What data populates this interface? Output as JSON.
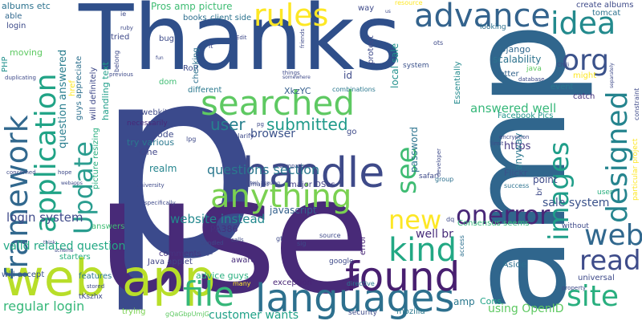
{
  "colors": {
    "background": "#ffffff",
    "palette": [
      "#440154",
      "#3b528b",
      "#21908d",
      "#5dc963",
      "#fde725"
    ]
  },
  "words": [
    {
      "text": "p",
      "color": "#3b4a8c"
    },
    {
      "text": "use",
      "color": "#482a78"
    },
    {
      "text": "Thanks",
      "color": "#2f4f8a"
    },
    {
      "text": "amp",
      "color": "#30668d"
    },
    {
      "text": "web app",
      "color": "#b8de29"
    },
    {
      "text": "handle",
      "color": "#3e4a89"
    },
    {
      "text": "languages",
      "color": "#2d708e"
    },
    {
      "text": "found",
      "color": "#481f70"
    },
    {
      "text": "anything",
      "color": "#7ad151"
    },
    {
      "text": "searched",
      "color": "#5ec962"
    },
    {
      "text": "file",
      "color": "#35b779"
    },
    {
      "text": "kind",
      "color": "#22a884"
    },
    {
      "text": "advance",
      "color": "#33638d"
    },
    {
      "text": "idea",
      "color": "#238a8d"
    },
    {
      "text": "org",
      "color": "#3b528b"
    },
    {
      "text": "rules",
      "color": "#fde725"
    },
    {
      "text": "framework",
      "color": "#31688e"
    },
    {
      "text": "application",
      "color": "#20a386"
    },
    {
      "text": "Update",
      "color": "#2a9d8f"
    },
    {
      "text": "designed",
      "color": "#25848e"
    },
    {
      "text": "images",
      "color": "#1f9e89"
    },
    {
      "text": "web",
      "color": "#31688e"
    },
    {
      "text": "site",
      "color": "#29af7f"
    },
    {
      "text": "read",
      "color": "#3e4c8a"
    },
    {
      "text": "onerror",
      "color": "#482677"
    },
    {
      "text": "new",
      "color": "#fde725"
    },
    {
      "text": "see",
      "color": "#3fbc73"
    },
    {
      "text": "submitted",
      "color": "#1f9a8a"
    },
    {
      "text": "user",
      "color": "#27808e"
    },
    {
      "text": "questions section",
      "color": "#2a788e"
    },
    {
      "text": "answered well",
      "color": "#35b779"
    },
    {
      "text": "login system",
      "color": "#3e4989"
    },
    {
      "text": "regular login",
      "color": "#35b779"
    },
    {
      "text": "website instead",
      "color": "#23898e"
    },
    {
      "text": "customer wants",
      "color": "#1fa187"
    },
    {
      "text": "sale system",
      "color": "#3b528b"
    },
    {
      "text": "using OpenID",
      "color": "#5ec962"
    },
    {
      "text": "valid related question",
      "color": "#22a884"
    },
    {
      "text": "Pros amp picture",
      "color": "#3fbc73"
    },
    {
      "text": "question answered",
      "color": "#287d8e"
    },
    {
      "text": "javascript",
      "color": "#34618d"
    },
    {
      "text": "browser",
      "color": "#3b528b"
    },
    {
      "text": "well br",
      "color": "#472c7a"
    },
    {
      "text": "https",
      "color": "#453882"
    },
    {
      "text": "Django",
      "color": "#31688e"
    },
    {
      "text": "scalability",
      "color": "#2c728e"
    },
    {
      "text": "Facebook Pics",
      "color": "#1f968b"
    },
    {
      "text": "Flickr",
      "color": "#3b528b"
    },
    {
      "text": "point",
      "color": "#3e4a89"
    },
    {
      "text": "realm",
      "color": "#25858e"
    },
    {
      "text": "PA386",
      "color": "#46327e"
    },
    {
      "text": "Java applet",
      "color": "#414487"
    },
    {
      "text": "XkzYC",
      "color": "#355f8d"
    },
    {
      "text": "RoR",
      "color": "#3e4c8a"
    },
    {
      "text": "comments",
      "color": "#46337f"
    },
    {
      "text": "advice guys",
      "color": "#29af7f"
    },
    {
      "text": "Cons",
      "color": "#20a386"
    },
    {
      "text": "amp",
      "color": "#2a788e"
    },
    {
      "text": "exception",
      "color": "#482576"
    },
    {
      "text": "google",
      "color": "#3e4a89"
    },
    {
      "text": "local sale",
      "color": "#21918c"
    },
    {
      "text": "password",
      "color": "#2c738e"
    },
    {
      "text": "webkit",
      "color": "#3e4989"
    },
    {
      "text": "code",
      "color": "#3e4a89"
    },
    {
      "text": "One",
      "color": "#404588"
    },
    {
      "text": "bug",
      "color": "#3e4c8a"
    },
    {
      "text": "dom",
      "color": "#3fbc73"
    },
    {
      "text": "books",
      "color": "#2e6e8e"
    },
    {
      "text": "client side",
      "color": "#2c738e"
    },
    {
      "text": "different",
      "color": "#2a788e"
    },
    {
      "text": "checking",
      "color": "#2d708e"
    },
    {
      "text": "major OSes",
      "color": "#424086"
    },
    {
      "text": "aware",
      "color": "#472d7b"
    },
    {
      "text": "answers",
      "color": "#3fbc73"
    },
    {
      "text": "features",
      "color": "#2a788e"
    },
    {
      "text": "starters",
      "color": "#26ad81"
    },
    {
      "text": "will accept",
      "color": "#3b528b"
    },
    {
      "text": "tried",
      "color": "#3e4989"
    },
    {
      "text": "moving",
      "color": "#5ec962"
    },
    {
      "text": "able",
      "color": "#31688e"
    },
    {
      "text": "login",
      "color": "#3e4c8a"
    },
    {
      "text": "albums etc",
      "color": "#2c728e"
    },
    {
      "text": "PHP",
      "color": "#21908d"
    },
    {
      "text": "guys appreciate",
      "color": "#2d708e"
    },
    {
      "text": "will definitely",
      "color": "#3e4989"
    },
    {
      "text": "handling text",
      "color": "#1f9e89"
    },
    {
      "text": "picture resizing",
      "color": "#29af7f"
    },
    {
      "text": "try various",
      "color": "#2a788e"
    },
    {
      "text": "necessarily",
      "color": "#482878"
    },
    {
      "text": "way",
      "color": "#3e4a89"
    },
    {
      "text": "protect",
      "color": "#3e4a89"
    },
    {
      "text": "system",
      "color": "#3b528b"
    },
    {
      "text": "Essentially",
      "color": "#238a8d"
    },
    {
      "text": "better",
      "color": "#33638d"
    },
    {
      "text": "might",
      "color": "#fde725"
    },
    {
      "text": "event",
      "color": "#2a788e"
    },
    {
      "text": "catch",
      "color": "#46327e"
    },
    {
      "text": "create albums",
      "color": "#3e4a89"
    },
    {
      "text": "tomcat",
      "color": "#2c728e"
    },
    {
      "text": "looking",
      "color": "#2d708e"
    },
    {
      "text": "id",
      "color": "#3e4a89"
    },
    {
      "text": "without",
      "color": "#3e4a89"
    },
    {
      "text": "anyway",
      "color": "#2a788e"
    },
    {
      "text": "br",
      "color": "#3e4a89"
    },
    {
      "text": "Aside",
      "color": "#2d708e"
    },
    {
      "text": "user",
      "color": "#29af7f"
    },
    {
      "text": "universal",
      "color": "#3e4a89"
    },
    {
      "text": "mozilla",
      "color": "#2a788e"
    },
    {
      "text": "security",
      "color": "#3e4a89"
    },
    {
      "text": "error",
      "color": "#482677"
    },
    {
      "text": "Consensus seems",
      "color": "#35b779"
    },
    {
      "text": "tKszhx",
      "color": "#3e4a89"
    },
    {
      "text": "trying",
      "color": "#7ad151"
    },
    {
      "text": "particular project",
      "color": "#fde725"
    },
    {
      "text": "gQaGbpUmjG",
      "color": "#5ec962"
    },
    {
      "text": "source",
      "color": "#3e4a89"
    },
    {
      "text": "combinations",
      "color": "#2a788e"
    },
    {
      "text": "safari",
      "color": "#3e4a89"
    },
    {
      "text": "group",
      "color": "#2d708e"
    },
    {
      "text": "success",
      "color": "#2c728e"
    },
    {
      "text": "ots",
      "color": "#3e4a89"
    },
    {
      "text": "lt",
      "color": "#3e4a89"
    },
    {
      "text": "gt",
      "color": "#3e4a89"
    },
    {
      "text": "go",
      "color": "#3e4a89"
    },
    {
      "text": "dq",
      "color": "#3e4a89"
    },
    {
      "text": "sig",
      "color": "#3e4a89"
    },
    {
      "text": "directive",
      "color": "#2a788e"
    },
    {
      "text": "access",
      "color": "#2d708e"
    },
    {
      "text": "major",
      "color": "#3e4a89"
    },
    {
      "text": "clarify",
      "color": "#3e4a89"
    },
    {
      "text": "constraint",
      "color": "#3e4a89"
    },
    {
      "text": "many",
      "color": "#fde725"
    },
    {
      "text": "href",
      "color": "#fde725"
    },
    {
      "text": "belong",
      "color": "#3e4a89"
    },
    {
      "text": "lpg",
      "color": "#3e4a89"
    },
    {
      "text": "encryption",
      "color": "#3e4a89"
    },
    {
      "text": "limit",
      "color": "#3e4a89"
    },
    {
      "text": "database",
      "color": "#3e4a89"
    },
    {
      "text": "previous",
      "color": "#3e4a89"
    },
    {
      "text": "comparison",
      "color": "#3e4a89"
    },
    {
      "text": "developer",
      "color": "#3e4a89"
    },
    {
      "text": "university",
      "color": "#3e4a89"
    },
    {
      "text": "specifically",
      "color": "#3e4a89"
    },
    {
      "text": "property",
      "color": "#3e4a89"
    },
    {
      "text": "calls",
      "color": "#3e4a89"
    },
    {
      "text": "bundled",
      "color": "#3e4a89"
    },
    {
      "text": "configs",
      "color": "#3e4a89"
    },
    {
      "text": "concerned",
      "color": "#3e4a89"
    },
    {
      "text": "hope",
      "color": "#3e4a89"
    },
    {
      "text": "stored",
      "color": "#3e4a89"
    },
    {
      "text": "things",
      "color": "#3e4a89"
    },
    {
      "text": "friends",
      "color": "#3e4a89"
    },
    {
      "text": "resource",
      "color": "#fde725"
    },
    {
      "text": "duplicating",
      "color": "#3e4a89"
    },
    {
      "text": "Edit",
      "color": "#3e4a89"
    },
    {
      "text": "java",
      "color": "#5ec962"
    },
    {
      "text": "Chili",
      "color": "#3e4a89"
    },
    {
      "text": "somewhere",
      "color": "#3e4a89"
    },
    {
      "text": "separately",
      "color": "#3e4a89"
    },
    {
      "text": "ruby",
      "color": "#3e4a89"
    },
    {
      "text": "webapps",
      "color": "#3e4a89"
    },
    {
      "text": "scheme",
      "color": "#3e4a89"
    },
    {
      "text": "think",
      "color": "#3e4a89"
    },
    {
      "text": "arguing",
      "color": "#3e4a89"
    },
    {
      "text": "html",
      "color": "#3e4a89"
    },
    {
      "text": "pg",
      "color": "#3e4a89"
    },
    {
      "text": "us",
      "color": "#3e4a89"
    },
    {
      "text": "ie",
      "color": "#3e4a89"
    },
    {
      "text": "fun",
      "color": "#3e4a89"
    }
  ]
}
